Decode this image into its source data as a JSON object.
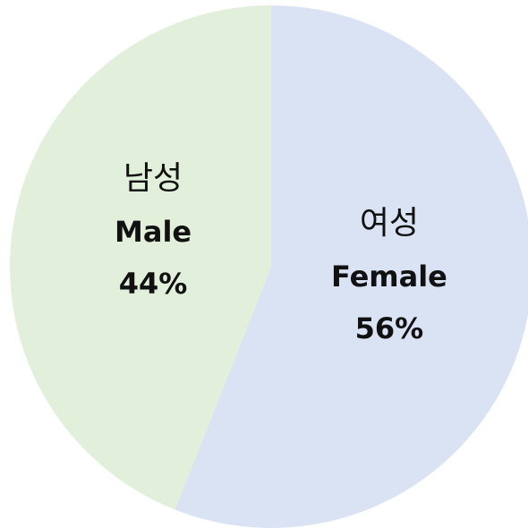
{
  "chart_data": {
    "type": "pie",
    "categories": [
      "Female",
      "Male"
    ],
    "category_labels_ko": [
      "여성",
      "남성"
    ],
    "values": [
      56,
      44
    ],
    "value_labels": [
      "56%",
      "44%"
    ],
    "colors": [
      "#dae3f3",
      "#e2efda"
    ]
  }
}
